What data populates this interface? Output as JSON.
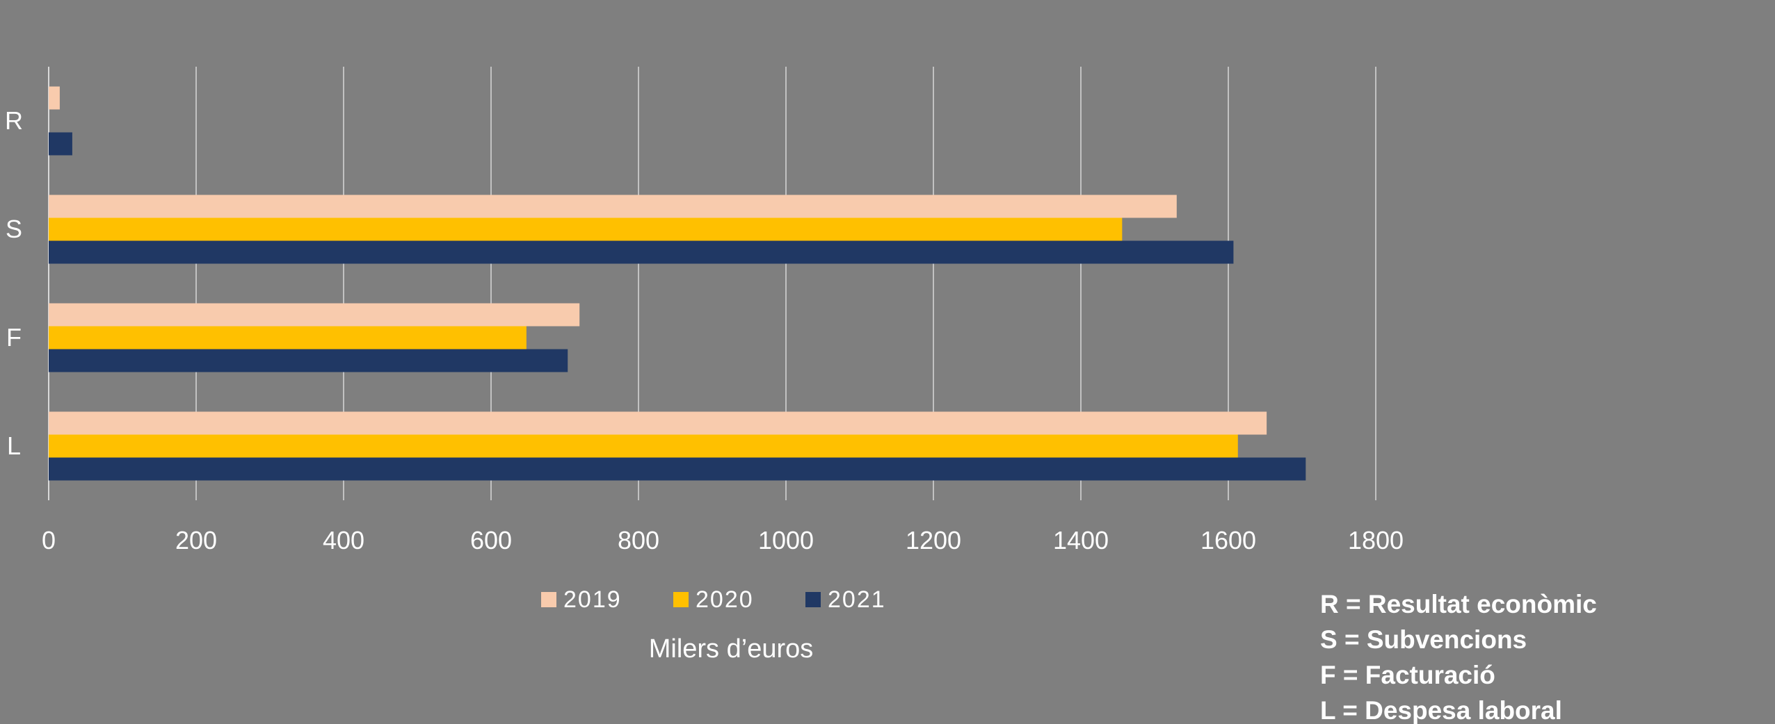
{
  "chart_data": {
    "type": "bar",
    "orientation": "horizontal",
    "categories": [
      "R",
      "S",
      "F",
      "L"
    ],
    "series": [
      {
        "name": "2019",
        "color": "#f8cbad",
        "values": [
          15,
          1530,
          720,
          1652
        ]
      },
      {
        "name": "2020",
        "color": "#ffc000",
        "values": [
          0,
          1456,
          648,
          1613
        ]
      },
      {
        "name": "2021",
        "color": "#203864",
        "values": [
          32,
          1607,
          704,
          1705
        ]
      }
    ],
    "xlabel": "Milers d’euros",
    "ylabel": "",
    "xlim": [
      0,
      1800
    ],
    "xticks": [
      "0",
      "200",
      "400",
      "600",
      "800",
      "1000",
      "1200",
      "1400",
      "1600",
      "1800"
    ],
    "grid": "vertical",
    "legend_position": "bottom",
    "key": [
      "R = Resultat econòmic",
      "S = Subvencions",
      "F = Facturació",
      "L = Despesa laboral"
    ]
  }
}
